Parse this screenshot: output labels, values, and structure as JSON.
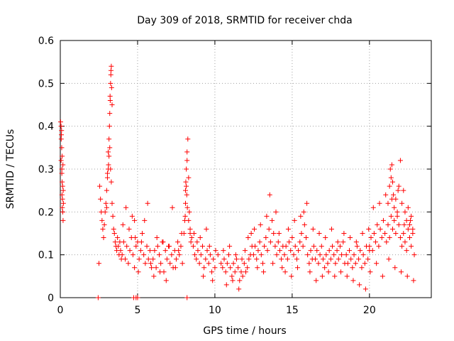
{
  "chart_data": {
    "type": "scatter",
    "title": "Day 309 of 2018, SRMTID for receiver chda",
    "xlabel": "GPS time / hours",
    "ylabel": "SRMTID / TECUs",
    "xlim": [
      0,
      24
    ],
    "ylim": [
      0,
      0.6
    ],
    "xticks": [
      0,
      5,
      10,
      15,
      20
    ],
    "xtick_labels": [
      "0",
      "5",
      "10",
      "15",
      "20"
    ],
    "yticks": [
      0,
      0.1,
      0.2,
      0.3,
      0.4,
      0.5,
      0.6
    ],
    "ytick_labels": [
      "0",
      "0.1",
      "0.2",
      "0.3",
      "0.4",
      "0.5",
      "0.6"
    ],
    "grid": true,
    "marker": "+",
    "color": "#ff0000",
    "series": [
      {
        "name": "SRMTID",
        "x": [
          0.02,
          0.05,
          0.07,
          0.09,
          0.1,
          0.12,
          0.14,
          0.16,
          0.18,
          0.2,
          0.05,
          0.1,
          0.15,
          0.08,
          0.12,
          0.17,
          0.06,
          0.11,
          0.13,
          0.19,
          2.5,
          2.55,
          2.6,
          2.65,
          2.7,
          2.75,
          2.8,
          2.85,
          2.9,
          2.95,
          3.0,
          3.05,
          3.1,
          3.15,
          3.2,
          3.25,
          3.3,
          3.35,
          3.4,
          3.45,
          3.5,
          3.55,
          3.6,
          3.65,
          3.7,
          3.75,
          3.8,
          3.85,
          3.9,
          3.95,
          3.2,
          3.22,
          3.25,
          3.28,
          3.3,
          3.32,
          3.35,
          3.18,
          3.15,
          3.12,
          3.1,
          3.05,
          3.0,
          3.27,
          3.23,
          4.0,
          4.1,
          4.2,
          4.3,
          4.4,
          4.5,
          4.6,
          4.7,
          4.8,
          4.9,
          5.0,
          5.1,
          5.2,
          5.3,
          5.4,
          5.5,
          5.6,
          5.7,
          5.8,
          5.9,
          4.05,
          4.25,
          4.45,
          4.65,
          4.85,
          5.05,
          5.25,
          5.45,
          5.65,
          5.85,
          6.0,
          6.1,
          6.2,
          6.3,
          6.4,
          6.5,
          6.6,
          6.7,
          6.8,
          6.9,
          7.0,
          7.1,
          7.2,
          7.3,
          7.4,
          7.5,
          7.6,
          7.7,
          7.8,
          7.9,
          6.05,
          6.25,
          6.45,
          6.65,
          6.85,
          7.05,
          7.25,
          7.45,
          7.65,
          7.85,
          8.0,
          8.05,
          8.1,
          8.15,
          8.2,
          8.25,
          8.3,
          8.35,
          8.4,
          8.45,
          8.1,
          8.15,
          8.2,
          8.12,
          8.18,
          8.08,
          8.22,
          8.3,
          8.4,
          8.5,
          8.6,
          8.7,
          8.8,
          8.9,
          9.0,
          9.1,
          9.2,
          9.3,
          9.4,
          9.5,
          9.6,
          9.7,
          9.8,
          9.9,
          10.0,
          8.65,
          8.85,
          9.05,
          9.25,
          9.45,
          9.65,
          9.85,
          10.05,
          10.2,
          10.4,
          10.5,
          10.6,
          10.7,
          10.8,
          10.9,
          11.0,
          11.1,
          11.2,
          11.3,
          11.4,
          11.5,
          11.6,
          11.7,
          11.8,
          11.9,
          12.0,
          12.1,
          12.2,
          12.3,
          12.4,
          10.55,
          10.75,
          10.95,
          11.15,
          11.35,
          11.55,
          11.75,
          11.95,
          12.15,
          12.35,
          12.5,
          12.6,
          12.7,
          12.8,
          12.9,
          13.0,
          13.1,
          13.2,
          13.3,
          13.4,
          13.5,
          13.6,
          13.7,
          13.8,
          13.9,
          14.0,
          14.1,
          14.2,
          14.3,
          14.4,
          12.55,
          12.75,
          12.95,
          13.15,
          13.35,
          13.55,
          13.75,
          13.95,
          14.15,
          14.35,
          14.5,
          14.6,
          14.7,
          14.8,
          14.9,
          15.0,
          15.1,
          15.2,
          15.3,
          15.4,
          15.5,
          15.6,
          15.7,
          15.8,
          15.9,
          16.0,
          16.1,
          16.2,
          16.3,
          16.4,
          14.55,
          14.75,
          14.95,
          15.15,
          15.35,
          15.55,
          15.75,
          15.95,
          16.15,
          16.35,
          16.5,
          16.6,
          16.7,
          16.8,
          16.9,
          17.0,
          17.1,
          17.2,
          17.3,
          17.4,
          17.5,
          17.6,
          17.7,
          17.8,
          17.9,
          18.0,
          18.1,
          18.2,
          18.3,
          18.4,
          16.55,
          16.75,
          16.95,
          17.15,
          17.35,
          17.55,
          17.75,
          17.95,
          18.15,
          18.35,
          18.5,
          18.6,
          18.7,
          18.8,
          18.9,
          19.0,
          19.1,
          19.2,
          19.3,
          19.4,
          19.5,
          19.6,
          19.7,
          19.8,
          19.9,
          20.0,
          18.55,
          18.75,
          18.95,
          19.15,
          19.35,
          19.55,
          19.75,
          19.95,
          20.0,
          20.1,
          20.2,
          20.3,
          20.4,
          20.5,
          20.6,
          20.7,
          20.8,
          20.9,
          21.0,
          21.1,
          21.2,
          21.3,
          21.4,
          21.5,
          21.6,
          21.7,
          21.8,
          21.9,
          20.05,
          20.25,
          20.45,
          20.65,
          20.85,
          21.05,
          21.25,
          21.45,
          21.65,
          21.85,
          21.2,
          21.3,
          21.35,
          21.4,
          21.45,
          21.5,
          21.55,
          21.6,
          21.7,
          21.8,
          21.9,
          22.0,
          22.1,
          22.2,
          22.3,
          22.4,
          22.5,
          22.6,
          22.7,
          22.8,
          22.0,
          22.1,
          22.2,
          22.3,
          22.4,
          22.5,
          22.6,
          22.7,
          22.8,
          22.9,
          22.05,
          22.25,
          22.45,
          22.65,
          22.85,
          2.45,
          4.75,
          4.9,
          5.0,
          8.2,
          4.8
        ],
        "y": [
          0.41,
          0.4,
          0.38,
          0.35,
          0.3,
          0.27,
          0.23,
          0.2,
          0.18,
          0.22,
          0.32,
          0.29,
          0.26,
          0.39,
          0.33,
          0.31,
          0.37,
          0.24,
          0.21,
          0.25,
          0.08,
          0.26,
          0.23,
          0.2,
          0.18,
          0.16,
          0.14,
          0.17,
          0.2,
          0.22,
          0.25,
          0.28,
          0.3,
          0.33,
          0.35,
          0.3,
          0.27,
          0.22,
          0.19,
          0.16,
          0.15,
          0.13,
          0.12,
          0.11,
          0.14,
          0.12,
          0.1,
          0.13,
          0.11,
          0.09,
          0.43,
          0.47,
          0.5,
          0.53,
          0.54,
          0.49,
          0.45,
          0.4,
          0.37,
          0.31,
          0.34,
          0.29,
          0.21,
          0.52,
          0.46,
          0.1,
          0.13,
          0.09,
          0.12,
          0.08,
          0.11,
          0.14,
          0.1,
          0.07,
          0.12,
          0.13,
          0.09,
          0.11,
          0.15,
          0.1,
          0.08,
          0.12,
          0.09,
          0.11,
          0.07,
          0.17,
          0.21,
          0.16,
          0.19,
          0.14,
          0.06,
          0.13,
          0.18,
          0.22,
          0.08,
          0.09,
          0.11,
          0.07,
          0.12,
          0.1,
          0.08,
          0.13,
          0.06,
          0.11,
          0.09,
          0.12,
          0.08,
          0.1,
          0.07,
          0.11,
          0.09,
          0.13,
          0.1,
          0.12,
          0.08,
          0.05,
          0.14,
          0.06,
          0.13,
          0.04,
          0.12,
          0.21,
          0.07,
          0.11,
          0.15,
          0.15,
          0.18,
          0.22,
          0.26,
          0.32,
          0.37,
          0.28,
          0.2,
          0.16,
          0.13,
          0.25,
          0.3,
          0.34,
          0.27,
          0.24,
          0.19,
          0.21,
          0.18,
          0.15,
          0.14,
          0.12,
          0.1,
          0.09,
          0.11,
          0.08,
          0.1,
          0.12,
          0.07,
          0.09,
          0.11,
          0.08,
          0.1,
          0.06,
          0.09,
          0.07,
          0.15,
          0.13,
          0.14,
          0.05,
          0.16,
          0.12,
          0.04,
          0.11,
          0.1,
          0.08,
          0.07,
          0.09,
          0.06,
          0.08,
          0.1,
          0.07,
          0.05,
          0.08,
          0.06,
          0.09,
          0.07,
          0.04,
          0.06,
          0.05,
          0.08,
          0.06,
          0.07,
          0.09,
          0.1,
          0.12,
          0.11,
          0.03,
          0.12,
          0.04,
          0.1,
          0.02,
          0.09,
          0.11,
          0.14,
          0.15,
          0.1,
          0.12,
          0.09,
          0.11,
          0.13,
          0.1,
          0.08,
          0.12,
          0.14,
          0.11,
          0.16,
          0.13,
          0.18,
          0.15,
          0.12,
          0.1,
          0.13,
          0.11,
          0.09,
          0.12,
          0.16,
          0.07,
          0.17,
          0.06,
          0.19,
          0.24,
          0.08,
          0.2,
          0.15,
          0.07,
          0.1,
          0.12,
          0.09,
          0.13,
          0.11,
          0.14,
          0.1,
          0.12,
          0.09,
          0.11,
          0.13,
          0.15,
          0.12,
          0.17,
          0.14,
          0.1,
          0.08,
          0.11,
          0.09,
          0.12,
          0.06,
          0.16,
          0.05,
          0.18,
          0.07,
          0.19,
          0.2,
          0.22,
          0.06,
          0.16,
          0.09,
          0.11,
          0.08,
          0.1,
          0.12,
          0.09,
          0.07,
          0.1,
          0.08,
          0.11,
          0.09,
          0.12,
          0.1,
          0.08,
          0.11,
          0.09,
          0.12,
          0.1,
          0.13,
          0.08,
          0.04,
          0.15,
          0.05,
          0.14,
          0.06,
          0.16,
          0.05,
          0.13,
          0.06,
          0.15,
          0.1,
          0.08,
          0.11,
          0.09,
          0.07,
          0.1,
          0.08,
          0.12,
          0.09,
          0.11,
          0.07,
          0.1,
          0.08,
          0.12,
          0.09,
          0.11,
          0.05,
          0.14,
          0.04,
          0.13,
          0.03,
          0.15,
          0.02,
          0.16,
          0.12,
          0.14,
          0.11,
          0.15,
          0.13,
          0.17,
          0.12,
          0.16,
          0.14,
          0.18,
          0.15,
          0.13,
          0.17,
          0.14,
          0.19,
          0.16,
          0.18,
          0.15,
          0.2,
          0.17,
          0.06,
          0.21,
          0.08,
          0.22,
          0.05,
          0.24,
          0.09,
          0.23,
          0.07,
          0.25,
          0.22,
          0.26,
          0.3,
          0.28,
          0.31,
          0.27,
          0.24,
          0.21,
          0.23,
          0.19,
          0.26,
          0.32,
          0.22,
          0.25,
          0.2,
          0.18,
          0.21,
          0.17,
          0.19,
          0.16,
          0.14,
          0.12,
          0.15,
          0.13,
          0.11,
          0.16,
          0.14,
          0.12,
          0.15,
          0.1,
          0.06,
          0.17,
          0.05,
          0.18,
          0.04,
          0.0,
          0.0,
          0.0,
          0.0,
          0.0,
          0.18
        ]
      }
    ]
  }
}
